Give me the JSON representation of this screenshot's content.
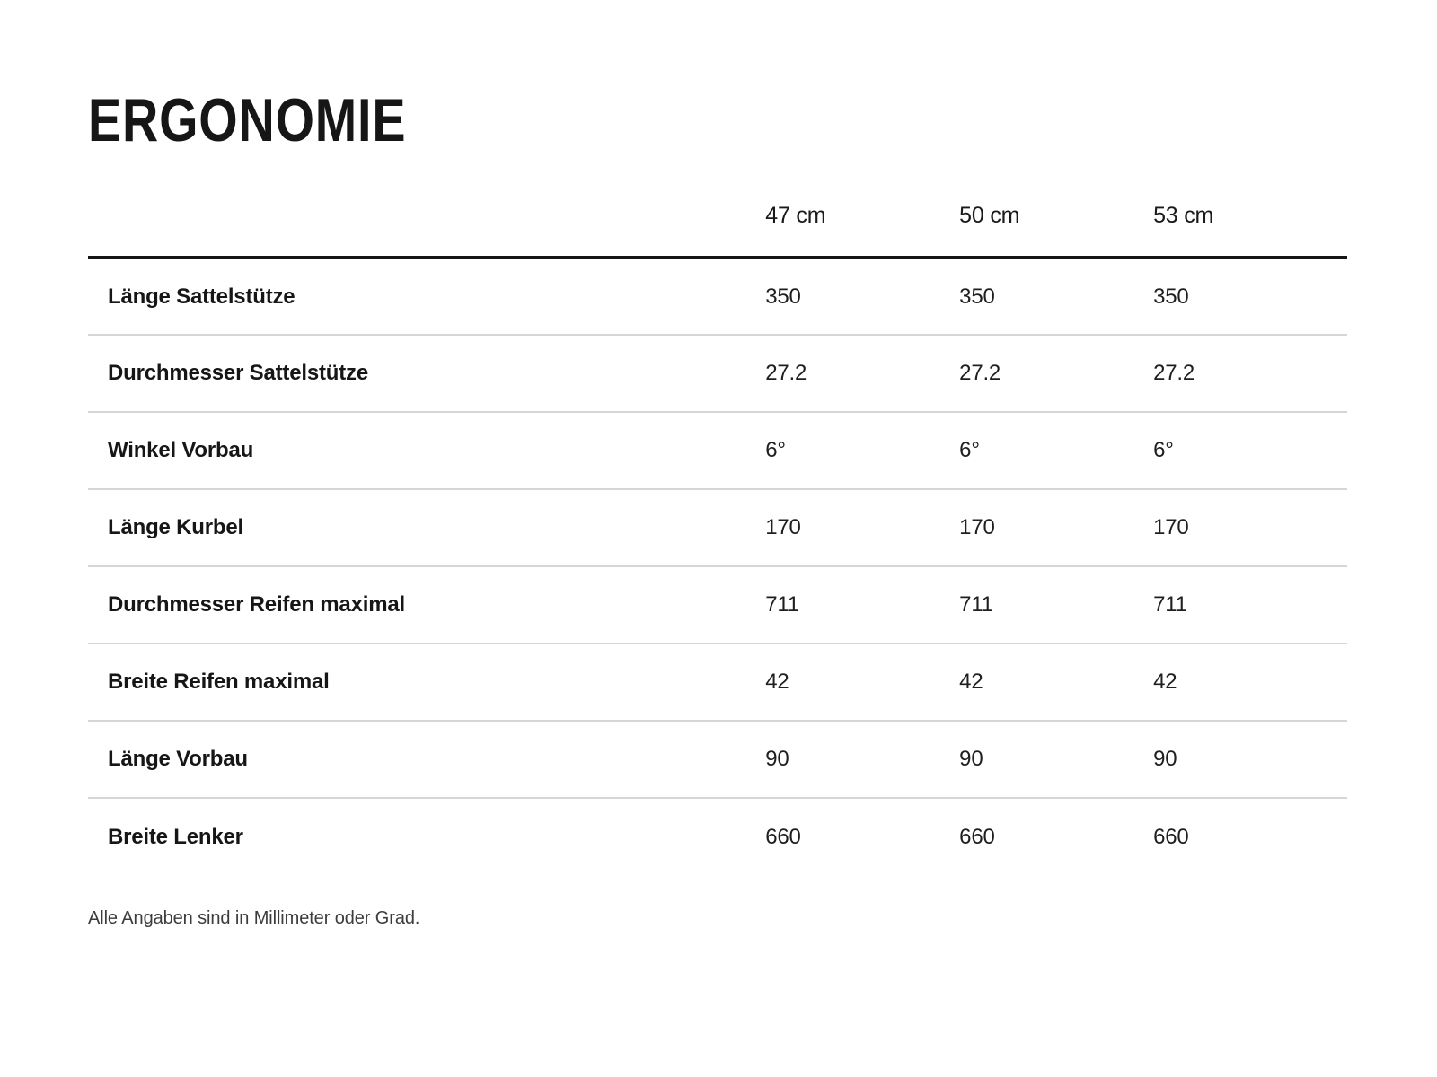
{
  "title": "ERGONOMIE",
  "table": {
    "size_columns": [
      "47 cm",
      "50 cm",
      "53 cm"
    ],
    "rows": [
      {
        "label": "Länge Sattelstütze",
        "values": [
          "350",
          "350",
          "350"
        ]
      },
      {
        "label": "Durchmesser Sattelstütze",
        "values": [
          "27.2",
          "27.2",
          "27.2"
        ]
      },
      {
        "label": "Winkel Vorbau",
        "values": [
          "6°",
          "6°",
          "6°"
        ]
      },
      {
        "label": "Länge Kurbel",
        "values": [
          "170",
          "170",
          "170"
        ]
      },
      {
        "label": "Durchmesser Reifen maximal",
        "values": [
          "711",
          "711",
          "711"
        ]
      },
      {
        "label": "Breite Reifen maximal",
        "values": [
          "42",
          "42",
          "42"
        ]
      },
      {
        "label": "Länge Vorbau",
        "values": [
          "90",
          "90",
          "90"
        ]
      },
      {
        "label": "Breite Lenker",
        "values": [
          "660",
          "660",
          "660"
        ]
      }
    ]
  },
  "footnote": "Alle Angaben sind in Millimeter oder Grad.",
  "colors": {
    "text": "#161616",
    "header_rule": "#161616",
    "row_divider": "#d6d6d6",
    "footnote_text": "#3c3c3c",
    "background": "#ffffff"
  }
}
